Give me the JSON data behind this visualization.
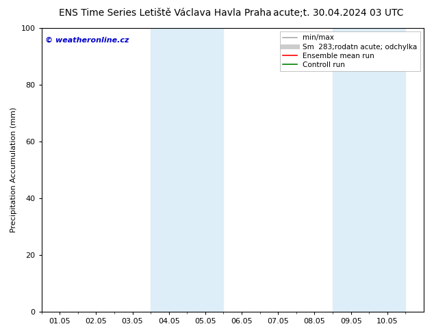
{
  "title_left": "ENS Time Series Letiště Václava Havla Praha",
  "title_right": "acute;t. 30.04.2024 03 UTC",
  "ylabel": "Precipitation Accumulation (mm)",
  "watermark": "© weatheronline.cz",
  "watermark_color": "#0000cc",
  "xlim": [
    0.0,
    10.5
  ],
  "ylim": [
    0,
    100
  ],
  "xtick_labels": [
    "01.05",
    "02.05",
    "03.05",
    "04.05",
    "05.05",
    "06.05",
    "07.05",
    "08.05",
    "09.05",
    "10.05"
  ],
  "xtick_positions": [
    0.5,
    1.5,
    2.5,
    3.5,
    4.5,
    5.5,
    6.5,
    7.5,
    8.5,
    9.5
  ],
  "ytick_labels": [
    "0",
    "20",
    "40",
    "60",
    "80",
    "100"
  ],
  "ytick_positions": [
    0,
    20,
    40,
    60,
    80,
    100
  ],
  "shaded_regions": [
    {
      "xmin": 3.0,
      "xmax": 5.0,
      "color": "#ddeef8"
    },
    {
      "xmin": 8.0,
      "xmax": 10.0,
      "color": "#ddeef8"
    }
  ],
  "legend_entries": [
    {
      "label": "min/max",
      "color": "#aaaaaa",
      "lw": 1.2
    },
    {
      "label": "Sm  283;rodatn acute; odchylka",
      "color": "#cccccc",
      "lw": 5
    },
    {
      "label": "Ensemble mean run",
      "color": "red",
      "lw": 1.2
    },
    {
      "label": "Controll run",
      "color": "green",
      "lw": 1.2
    }
  ],
  "background_color": "#ffffff",
  "title_fontsize": 10,
  "tick_fontsize": 8,
  "ylabel_fontsize": 8,
  "legend_fontsize": 7.5,
  "watermark_fontsize": 8
}
